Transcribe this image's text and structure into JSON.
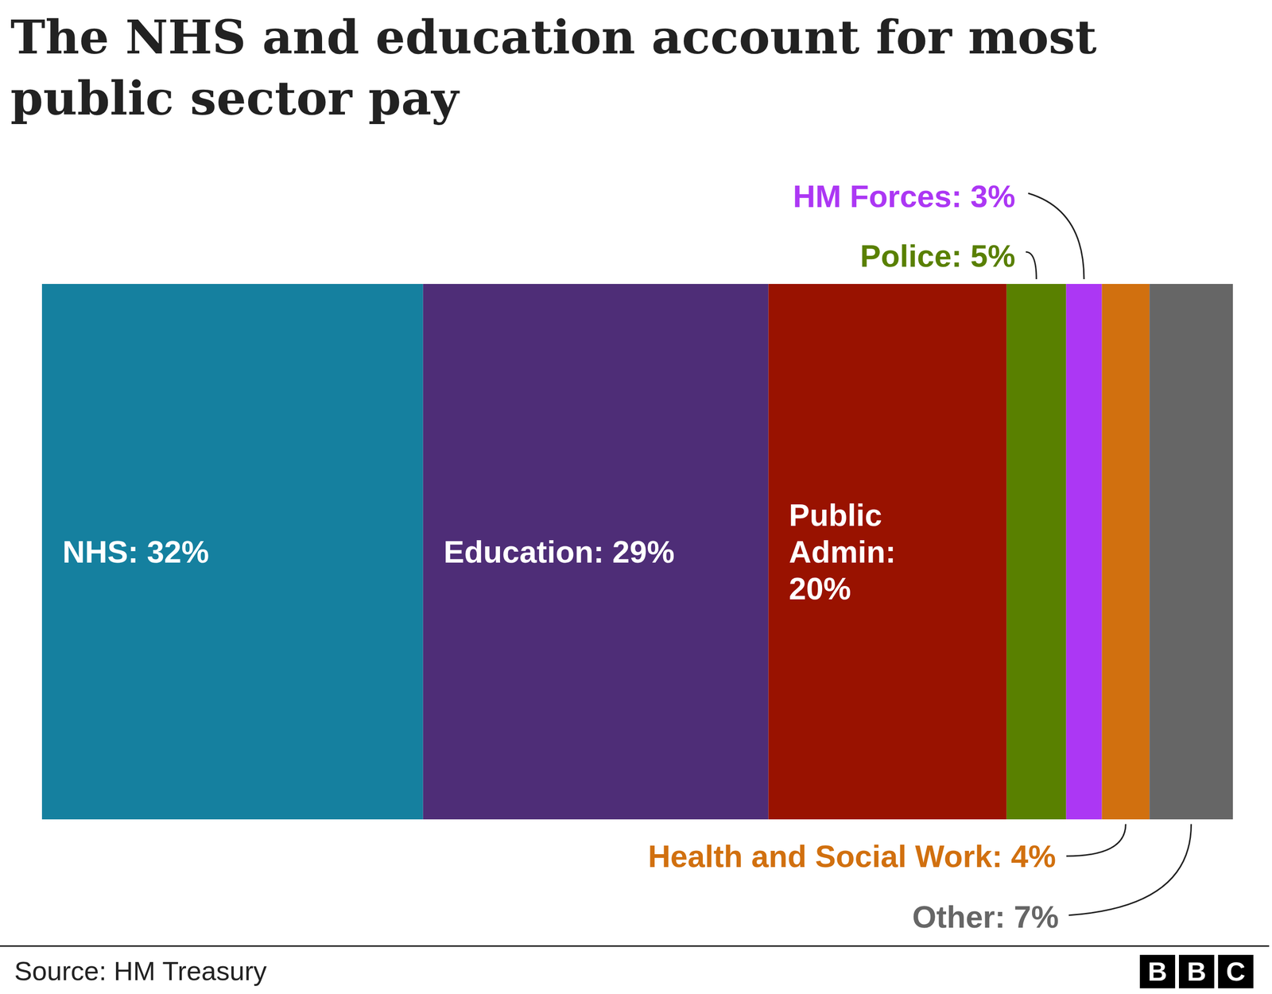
{
  "chart_data": {
    "type": "bar",
    "orientation": "horizontal",
    "stacked": true,
    "title": "The NHS and education account for most public sector pay",
    "source": "Source: HM Treasury",
    "logo": "BBC",
    "categories": [
      null
    ],
    "xlim": [
      0,
      100
    ],
    "tick_labels": false,
    "data_labels": true,
    "series": [
      {
        "name": "NHS",
        "color": "#15809f",
        "values": [
          32
        ],
        "value_labels": [
          "NHS: 32%"
        ]
      },
      {
        "name": "Education",
        "color": "#4e2d77",
        "values": [
          29
        ],
        "value_labels": [
          "Education: 29%"
        ]
      },
      {
        "name": "Public Admin",
        "color": "#991200",
        "values": [
          20
        ],
        "value_labels": [
          "Public Admin: 20%"
        ]
      },
      {
        "name": "Police",
        "color": "#598000",
        "values": [
          5
        ],
        "value_labels": [
          "Police: 5%"
        ]
      },
      {
        "name": "HM Forces",
        "color": "#ac37f4",
        "values": [
          3
        ],
        "value_labels": [
          "HM Forces: 3%"
        ]
      },
      {
        "name": "Health and Social Work",
        "color": "#d1700f",
        "values": [
          4
        ],
        "value_labels": [
          "Health and Social Work: 4%"
        ]
      },
      {
        "name": "Other",
        "color": "#666666",
        "values": [
          7
        ],
        "value_labels": [
          "Other: 7%"
        ]
      }
    ]
  }
}
